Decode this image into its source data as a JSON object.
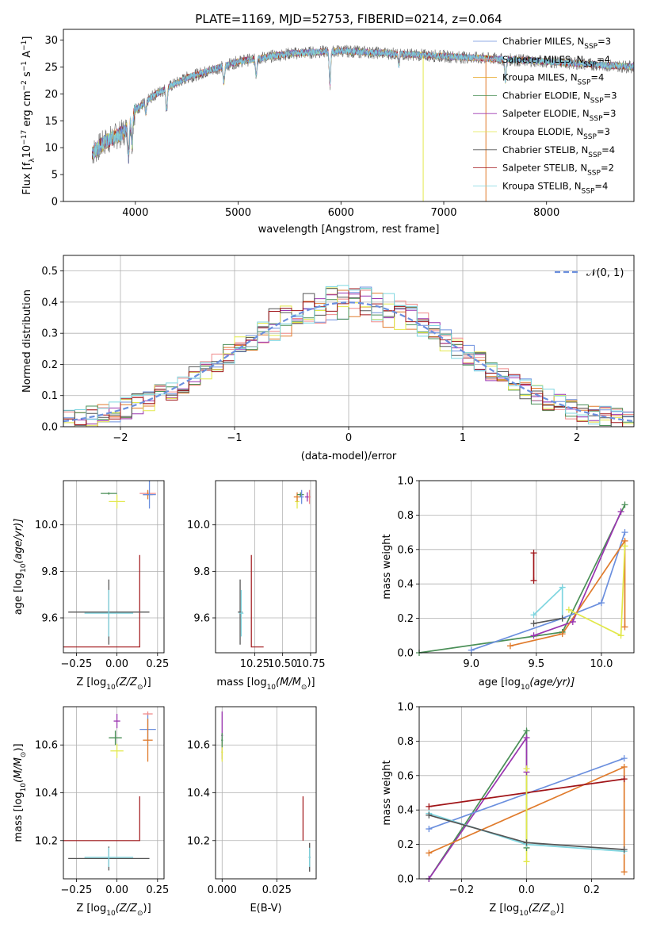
{
  "title": "PLATE=1169, MJD=52753, FIBERID=0214, z=0.064",
  "colors": {
    "chabrier_miles": "#6b8fde",
    "salpeter_miles": "#f08a8a",
    "kroupa_miles": "#e6a21a",
    "chabrier_elodie": "#4a8f57",
    "salpeter_elodie": "#9a35b0",
    "kroupa_elodie": "#e2e84a",
    "chabrier_stelib": "#555555",
    "salpeter_stelib": "#a01418",
    "kroupa_stelib": "#7fd6e0",
    "orange": "#e07b2c",
    "grid": "#b0b0b0"
  },
  "chart_data": [
    {
      "id": "spectrum",
      "type": "line",
      "xlabel": "wavelength [Angstrom, rest frame]",
      "ylabel_parts": [
        "Flux [f",
        "λ",
        "10",
        "−17",
        " erg cm",
        "−2",
        " s",
        "−1",
        " A",
        "−1",
        "]"
      ],
      "xlim": [
        3300,
        8850
      ],
      "ylim": [
        0,
        32
      ],
      "xticks": [
        4000,
        5000,
        6000,
        7000,
        8000
      ],
      "yticks": [
        0,
        5,
        10,
        15,
        20,
        25,
        30
      ],
      "grid": false,
      "legend_position": "top-right",
      "legend": [
        {
          "name": "Chabrier MILES, N",
          "sub": "SSP",
          "tail": "=3",
          "color": "chabrier_miles"
        },
        {
          "name": "Salpeter MILES, N",
          "sub": "SSP",
          "tail": "=4",
          "color": "salpeter_miles"
        },
        {
          "name": "Kroupa MILES, N",
          "sub": "SSP",
          "tail": "=4",
          "color": "kroupa_miles"
        },
        {
          "name": "Chabrier ELODIE, N",
          "sub": "SSP",
          "tail": "=3",
          "color": "chabrier_elodie"
        },
        {
          "name": "Salpeter ELODIE, N",
          "sub": "SSP",
          "tail": "=3",
          "color": "salpeter_elodie"
        },
        {
          "name": "Kroupa ELODIE, N",
          "sub": "SSP",
          "tail": "=3",
          "color": "kroupa_elodie"
        },
        {
          "name": "Chabrier STELIB, N",
          "sub": "SSP",
          "tail": "=4",
          "color": "chabrier_stelib"
        },
        {
          "name": "Salpeter STELIB, N",
          "sub": "SSP",
          "tail": "=2",
          "color": "salpeter_stelib"
        },
        {
          "name": "Kroupa STELIB, N",
          "sub": "SSP",
          "tail": "=4",
          "color": "kroupa_stelib"
        }
      ],
      "wavelength_range": [
        3580,
        8850
      ],
      "continuum": [
        [
          3580,
          9
        ],
        [
          3700,
          11
        ],
        [
          3900,
          13
        ],
        [
          4000,
          17
        ],
        [
          4200,
          20
        ],
        [
          4500,
          23
        ],
        [
          5000,
          26
        ],
        [
          5500,
          27.5
        ],
        [
          6000,
          28
        ],
        [
          6500,
          27.5
        ],
        [
          7000,
          27
        ],
        [
          7500,
          26.5
        ],
        [
          8000,
          26
        ],
        [
          8850,
          25
        ]
      ],
      "absorption": [
        [
          3934,
          6
        ],
        [
          3968,
          5
        ],
        [
          4102,
          2
        ],
        [
          4304,
          4
        ],
        [
          4861,
          3
        ],
        [
          5175,
          3
        ],
        [
          5893,
          6
        ],
        [
          6563,
          2
        ],
        [
          7600,
          4
        ]
      ],
      "spikes": [
        {
          "x": 6800,
          "y": 0,
          "color": "kroupa_elodie"
        },
        {
          "x": 7410,
          "y": 0,
          "color": "orange"
        }
      ]
    },
    {
      "id": "residuals",
      "type": "step-histogram",
      "xlabel": "(data-model)/error",
      "ylabel": "Normed distribution",
      "xlim": [
        -2.5,
        2.5
      ],
      "ylim": [
        0,
        0.55
      ],
      "xticks": [
        -2,
        -1,
        0,
        1,
        2
      ],
      "xtick_labels": [
        "−2",
        "−1",
        "0",
        "1",
        "2"
      ],
      "yticks": [
        0.0,
        0.1,
        0.2,
        0.3,
        0.4,
        0.5
      ],
      "grid": true,
      "bin_width": 0.1,
      "legend_position": "top-right",
      "legend": [
        {
          "name": "𝒩(0, 1)",
          "color": "chabrier_miles",
          "dashed": true
        }
      ],
      "series_colors": [
        "chabrier_miles",
        "salpeter_miles",
        "orange",
        "chabrier_elodie",
        "salpeter_elodie",
        "kroupa_elodie",
        "chabrier_stelib",
        "salpeter_stelib",
        "kroupa_stelib"
      ]
    },
    {
      "id": "age-vs-z",
      "type": "scatter-errorbars",
      "xlabel_parts": [
        "Z [log",
        "10",
        "(Z/Z",
        "⊙",
        ")]"
      ],
      "ylabel_parts": [
        "age  [log",
        "10",
        "(age/yr)]"
      ],
      "xlim": [
        -0.33,
        0.29
      ],
      "ylim": [
        9.45,
        10.19
      ],
      "xticks": [
        -0.25,
        0.0,
        0.25
      ],
      "xtick_labels": [
        "−0.25",
        "0.00",
        "0.25"
      ],
      "yticks": [
        9.6,
        9.8,
        10.0
      ],
      "grid": true,
      "points": [
        {
          "x": -0.05,
          "y": 10.135,
          "xerr": 0.05,
          "yerr": 0.005,
          "color": "chabrier_elodie"
        },
        {
          "x": 0.0,
          "y": 10.1,
          "xerr": 0.05,
          "yerr": 0.03,
          "color": "kroupa_elodie"
        },
        {
          "x": 0.19,
          "y": 10.135,
          "xerr": 0.05,
          "yerr": 0.01,
          "color": "salpeter_miles"
        },
        {
          "x": 0.19,
          "y": 10.13,
          "xerr": 0.03,
          "yerr": 0.02,
          "color": "orange"
        },
        {
          "x": 0.2,
          "y": 10.13,
          "xerr": 0.04,
          "yerr": 0.06,
          "color": "chabrier_miles"
        },
        {
          "x": -0.05,
          "y": 9.625,
          "xerr": 0.25,
          "yerr": 0.14,
          "color": "chabrier_stelib"
        },
        {
          "x": -0.05,
          "y": 9.62,
          "xerr": 0.15,
          "yerr": 0.1,
          "color": "kroupa_stelib"
        }
      ],
      "steps": [
        {
          "color": "salpeter_stelib",
          "path": [
            [
              -0.35,
              9.475
            ],
            [
              0.14,
              9.475
            ],
            [
              0.14,
              9.87
            ]
          ]
        }
      ]
    },
    {
      "id": "age-vs-mass",
      "type": "scatter-errorbars",
      "xlabel_parts": [
        "mass [log",
        "10",
        "(M/M",
        "⊙",
        ")]"
      ],
      "xlim": [
        9.9,
        10.8
      ],
      "ylim": [
        9.45,
        10.19
      ],
      "xticks": [
        10.25,
        10.5,
        10.75
      ],
      "xtick_labels": [
        "10.25",
        "10.50",
        "10.75"
      ],
      "yticks": [
        9.6,
        9.8,
        10.0
      ],
      "grid": true,
      "points": [
        {
          "x": 10.12,
          "y": 9.625,
          "xerr": 0.02,
          "yerr": 0.14,
          "color": "chabrier_stelib"
        },
        {
          "x": 10.13,
          "y": 9.62,
          "xerr": 0.02,
          "yerr": 0.1,
          "color": "kroupa_stelib"
        },
        {
          "x": 10.63,
          "y": 10.1,
          "xerr": 0.02,
          "yerr": 0.03,
          "color": "kroupa_elodie"
        },
        {
          "x": 10.63,
          "y": 10.12,
          "xerr": 0.03,
          "yerr": 0.02,
          "color": "orange"
        },
        {
          "x": 10.66,
          "y": 10.13,
          "xerr": 0.03,
          "yerr": 0.01,
          "color": "chabrier_elodie"
        },
        {
          "x": 10.67,
          "y": 10.12,
          "xerr": 0.02,
          "yerr": 0.03,
          "color": "chabrier_miles"
        },
        {
          "x": 10.72,
          "y": 10.12,
          "xerr": 0.02,
          "yerr": 0.02,
          "color": "salpeter_elodie"
        },
        {
          "x": 10.74,
          "y": 10.12,
          "xerr": 0.01,
          "yerr": 0.03,
          "color": "salpeter_miles"
        }
      ],
      "steps": [
        {
          "color": "salpeter_stelib",
          "path": [
            [
              10.22,
              9.87
            ],
            [
              10.22,
              9.475
            ],
            [
              10.33,
              9.475
            ]
          ]
        }
      ]
    },
    {
      "id": "weight-vs-age",
      "type": "line",
      "xlabel_parts": [
        "age  [log",
        "10",
        "(age/yr)]"
      ],
      "ylabel": "mass weight",
      "xlim": [
        8.6,
        10.25
      ],
      "ylim": [
        0,
        1.0
      ],
      "xticks": [
        9.0,
        9.5,
        10.0
      ],
      "xtick_labels": [
        "9.0",
        "9.5",
        "10.0"
      ],
      "yticks": [
        0.0,
        0.2,
        0.4,
        0.6,
        0.8,
        1.0
      ],
      "grid": true,
      "series": [
        {
          "color": "chabrier_elodie",
          "x": [
            8.6,
            9.7,
            10.18
          ],
          "y": [
            0.0,
            0.12,
            0.86
          ]
        },
        {
          "color": "salpeter_elodie",
          "x": [
            9.48,
            9.78,
            10.15
          ],
          "y": [
            0.1,
            0.18,
            0.82
          ]
        },
        {
          "color": "chabrier_miles",
          "x": [
            9.0,
            9.7,
            10.0,
            10.18
          ],
          "y": [
            0.015,
            0.2,
            0.29,
            0.7
          ]
        },
        {
          "color": "orange",
          "x": [
            9.3,
            9.7,
            10.18,
            10.18
          ],
          "y": [
            0.04,
            0.11,
            0.65,
            0.15
          ]
        },
        {
          "color": "kroupa_elodie",
          "x": [
            9.75,
            10.15,
            10.18
          ],
          "y": [
            0.25,
            0.1,
            0.62
          ]
        },
        {
          "color": "kroupa_stelib",
          "x": [
            9.48,
            9.7,
            9.7
          ],
          "y": [
            0.22,
            0.38,
            0.2
          ]
        },
        {
          "color": "chabrier_stelib",
          "x": [
            9.48,
            9.7
          ],
          "y": [
            0.17,
            0.2
          ]
        },
        {
          "color": "salpeter_stelib",
          "x": [
            9.48,
            9.48
          ],
          "y": [
            0.42,
            0.58
          ]
        }
      ]
    },
    {
      "id": "mass-vs-z",
      "type": "scatter-errorbars",
      "xlabel_parts": [
        "Z [log",
        "10",
        "(Z/Z",
        "⊙",
        ")]"
      ],
      "ylabel_parts": [
        "mass [log",
        "10",
        "(M/M",
        "⊙",
        ")]"
      ],
      "xlim": [
        -0.33,
        0.29
      ],
      "ylim": [
        10.04,
        10.76
      ],
      "xticks": [
        -0.25,
        0.0,
        0.25
      ],
      "xtick_labels": [
        "−0.25",
        "0.00",
        "0.25"
      ],
      "yticks": [
        10.2,
        10.4,
        10.6
      ],
      "grid": true,
      "points": [
        {
          "x": 0.0,
          "y": 10.7,
          "xerr": 0.02,
          "yerr": 0.03,
          "color": "salpeter_elodie"
        },
        {
          "x": -0.01,
          "y": 10.63,
          "xerr": 0.04,
          "yerr": 0.03,
          "color": "chabrier_elodie"
        },
        {
          "x": 0.0,
          "y": 10.575,
          "xerr": 0.04,
          "yerr": 0.03,
          "color": "kroupa_elodie"
        },
        {
          "x": 0.19,
          "y": 10.73,
          "xerr": 0.03,
          "yerr": 0.01,
          "color": "salpeter_miles"
        },
        {
          "x": 0.19,
          "y": 10.665,
          "xerr": 0.05,
          "yerr": 0.06,
          "color": "chabrier_miles"
        },
        {
          "x": 0.19,
          "y": 10.62,
          "xerr": 0.03,
          "yerr": 0.09,
          "color": "orange"
        },
        {
          "x": -0.05,
          "y": 10.125,
          "xerr": 0.25,
          "yerr": 0.05,
          "color": "chabrier_stelib"
        },
        {
          "x": -0.05,
          "y": 10.13,
          "xerr": 0.15,
          "yerr": 0.04,
          "color": "kroupa_stelib"
        }
      ],
      "steps": [
        {
          "color": "salpeter_stelib",
          "path": [
            [
              -0.35,
              10.2
            ],
            [
              0.14,
              10.2
            ],
            [
              0.14,
              10.385
            ]
          ]
        }
      ]
    },
    {
      "id": "mass-vs-ebv",
      "type": "scatter-errorbars",
      "xlabel": "E(B-V)",
      "xlim": [
        -0.003,
        0.043
      ],
      "ylim": [
        10.04,
        10.76
      ],
      "xticks": [
        0.0,
        0.025
      ],
      "xtick_labels": [
        "0.000",
        "0.025"
      ],
      "yticks": [
        10.2,
        10.4,
        10.6
      ],
      "grid": true,
      "points": [
        {
          "x": 0.0,
          "y": 10.64,
          "xerr": 0.0004,
          "yerr": 0.1,
          "color": "salpeter_elodie"
        },
        {
          "x": 0.0,
          "y": 10.57,
          "xerr": 0.0004,
          "yerr": 0.04,
          "color": "kroupa_elodie"
        },
        {
          "x": 0.0,
          "y": 10.62,
          "xerr": 0.0004,
          "yerr": 0.03,
          "color": "chabrier_elodie"
        },
        {
          "x": 0.04,
          "y": 10.13,
          "xerr": 0.0004,
          "yerr": 0.06,
          "color": "chabrier_stelib"
        },
        {
          "x": 0.04,
          "y": 10.13,
          "xerr": 0.0004,
          "yerr": 0.04,
          "color": "kroupa_stelib"
        }
      ],
      "steps": [
        {
          "color": "salpeter_stelib",
          "path": [
            [
              0.037,
              10.2
            ],
            [
              0.037,
              10.385
            ]
          ]
        }
      ]
    },
    {
      "id": "weight-vs-z",
      "type": "line",
      "xlabel_parts": [
        "Z [log",
        "10",
        "(Z/Z",
        "⊙",
        ")]"
      ],
      "ylabel": "mass weight",
      "xlim": [
        -0.33,
        0.33
      ],
      "ylim": [
        0,
        1.0
      ],
      "xticks": [
        -0.2,
        0.0,
        0.2
      ],
      "xtick_labels": [
        "−0.2",
        "0.0",
        "0.2"
      ],
      "yticks": [
        0.0,
        0.2,
        0.4,
        0.6,
        0.8,
        1.0
      ],
      "grid": true,
      "series": [
        {
          "color": "chabrier_elodie",
          "x": [
            -0.3,
            0.0,
            0.0
          ],
          "y": [
            0.0,
            0.86,
            0.18
          ]
        },
        {
          "color": "salpeter_elodie",
          "x": [
            -0.3,
            0.0,
            0.0
          ],
          "y": [
            0.0,
            0.82,
            0.62
          ]
        },
        {
          "color": "chabrier_miles",
          "x": [
            -0.3,
            0.3
          ],
          "y": [
            0.29,
            0.7
          ]
        },
        {
          "color": "orange",
          "x": [
            -0.3,
            0.3,
            0.3
          ],
          "y": [
            0.15,
            0.65,
            0.04
          ]
        },
        {
          "color": "salpeter_stelib",
          "x": [
            -0.3,
            0.3
          ],
          "y": [
            0.42,
            0.58
          ]
        },
        {
          "color": "kroupa_elodie",
          "x": [
            0.0,
            0.0
          ],
          "y": [
            0.1,
            0.64
          ]
        },
        {
          "color": "kroupa_stelib",
          "x": [
            -0.3,
            0.0,
            0.3
          ],
          "y": [
            0.38,
            0.2,
            0.16
          ]
        },
        {
          "color": "chabrier_stelib",
          "x": [
            -0.3,
            0.0,
            0.3
          ],
          "y": [
            0.37,
            0.21,
            0.17
          ]
        }
      ]
    }
  ]
}
